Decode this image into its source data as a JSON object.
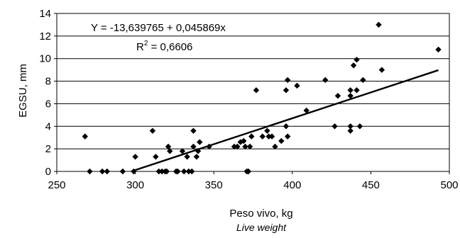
{
  "chart_data": {
    "type": "scatter",
    "xlabel": "Peso vivo, kg",
    "xlabel_sub": "Live weight",
    "ylabel": "EGSU, mm",
    "xlim": [
      250,
      500
    ],
    "ylim": [
      0,
      14
    ],
    "x_ticks": [
      "250",
      "300",
      "350",
      "400",
      "450",
      "500"
    ],
    "y_ticks": [
      "0",
      "2",
      "4",
      "6",
      "8",
      "10",
      "12",
      "14"
    ],
    "grid": "horizontal",
    "marker": "diamond",
    "marker_color": "#000000",
    "line_color": "#000000",
    "annotations": {
      "equation": "Y = -13,639765 + 0,045869x",
      "r2_prefix": "R",
      "r2_sup": "2",
      "r2_value": " = 0,6606"
    },
    "trendline": {
      "intercept": -13.639765,
      "slope": 0.045869,
      "x_range": [
        297.4,
        493
      ]
    },
    "points": [
      {
        "x": 268,
        "y": 3.1
      },
      {
        "x": 271,
        "y": 0
      },
      {
        "x": 279,
        "y": 0
      },
      {
        "x": 282,
        "y": 0
      },
      {
        "x": 292,
        "y": 0
      },
      {
        "x": 299,
        "y": 0
      },
      {
        "x": 300,
        "y": 1.3
      },
      {
        "x": 311,
        "y": 3.6
      },
      {
        "x": 313,
        "y": 1.3
      },
      {
        "x": 315,
        "y": 0
      },
      {
        "x": 317,
        "y": 0
      },
      {
        "x": 319,
        "y": 0
      },
      {
        "x": 320,
        "y": 0
      },
      {
        "x": 321,
        "y": 2.2
      },
      {
        "x": 322,
        "y": 1.8
      },
      {
        "x": 326,
        "y": 0
      },
      {
        "x": 327,
        "y": 0
      },
      {
        "x": 330,
        "y": 1.8
      },
      {
        "x": 331,
        "y": 0
      },
      {
        "x": 333,
        "y": 1.3
      },
      {
        "x": 334,
        "y": 0
      },
      {
        "x": 336,
        "y": 0
      },
      {
        "x": 337,
        "y": 2.2
      },
      {
        "x": 337,
        "y": 3.6
      },
      {
        "x": 339,
        "y": 1.3
      },
      {
        "x": 340,
        "y": 1.8
      },
      {
        "x": 341,
        "y": 2.6
      },
      {
        "x": 347,
        "y": 2.2
      },
      {
        "x": 363,
        "y": 2.2
      },
      {
        "x": 365,
        "y": 2.2
      },
      {
        "x": 367,
        "y": 2.6
      },
      {
        "x": 369,
        "y": 2.7
      },
      {
        "x": 370,
        "y": 2.2
      },
      {
        "x": 371,
        "y": 0
      },
      {
        "x": 372,
        "y": 0
      },
      {
        "x": 373,
        "y": 2.2
      },
      {
        "x": 374,
        "y": 3.1
      },
      {
        "x": 377,
        "y": 7.2
      },
      {
        "x": 381,
        "y": 3.1
      },
      {
        "x": 384,
        "y": 3.6
      },
      {
        "x": 385,
        "y": 3.1
      },
      {
        "x": 387,
        "y": 3.1
      },
      {
        "x": 389,
        "y": 2.2
      },
      {
        "x": 393,
        "y": 2.7
      },
      {
        "x": 396,
        "y": 4.0
      },
      {
        "x": 396,
        "y": 7.2
      },
      {
        "x": 397,
        "y": 3.1
      },
      {
        "x": 397,
        "y": 8.1
      },
      {
        "x": 403,
        "y": 7.6
      },
      {
        "x": 409,
        "y": 5.4
      },
      {
        "x": 421,
        "y": 8.1
      },
      {
        "x": 427,
        "y": 4.0
      },
      {
        "x": 429,
        "y": 6.7
      },
      {
        "x": 437,
        "y": 3.6
      },
      {
        "x": 437,
        "y": 4.0
      },
      {
        "x": 437,
        "y": 6.7
      },
      {
        "x": 437,
        "y": 7.2
      },
      {
        "x": 439,
        "y": 9.4
      },
      {
        "x": 441,
        "y": 9.9
      },
      {
        "x": 441,
        "y": 7.2
      },
      {
        "x": 443,
        "y": 4.0
      },
      {
        "x": 445,
        "y": 8.1
      },
      {
        "x": 455,
        "y": 13.0
      },
      {
        "x": 457,
        "y": 9.0
      },
      {
        "x": 493,
        "y": 10.8
      }
    ]
  }
}
